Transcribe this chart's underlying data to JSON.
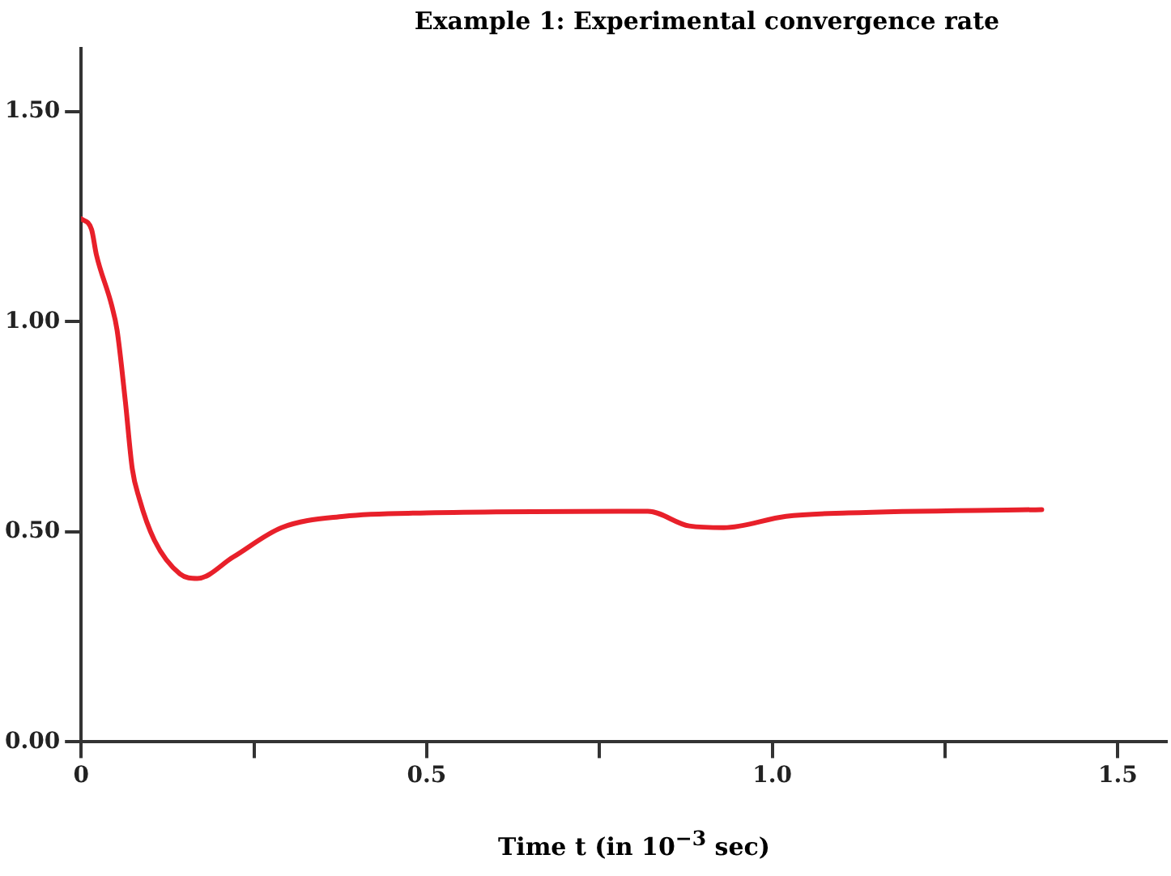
{
  "chart_data": {
    "type": "line",
    "title": "Example 1: Experimental convergence rate",
    "xlabel": "Time t (in 10$^{−3}$ sec)",
    "x": [
      0,
      0.015,
      0.022,
      0.044,
      0.052,
      0.064,
      0.074,
      0.084,
      0.106,
      0.143,
      0.168,
      0.22,
      0.29,
      0.38,
      0.5,
      0.82,
      0.88,
      0.93,
      1.02,
      1.11,
      1.39
    ],
    "series": [
      {
        "color": "#e8202a",
        "values": [
          1.245,
          1.22,
          1.16,
          1.04,
          0.98,
          0.81,
          0.65,
          0.58,
          0.48,
          0.4,
          0.389,
          0.44,
          0.51,
          0.537,
          0.545,
          0.549,
          0.514,
          0.51,
          0.537,
          0.545,
          0.553
        ]
      }
    ],
    "xlim": [
      0,
      1.57
    ],
    "ylim": [
      0,
      1.65
    ],
    "xticks": [
      {
        "value": 0,
        "label": "0"
      },
      {
        "value": 0.25,
        "label": null
      },
      0.5,
      {
        "value": 0.75,
        "label": null
      },
      {
        "value": 1,
        "label": "1.0"
      },
      {
        "value": 1.25,
        "label": null
      },
      1.5
    ],
    "yticks": [
      {
        "value": 0,
        "label": "0.00"
      },
      {
        "value": 0.5,
        "label": "0.50"
      },
      {
        "value": 1,
        "label": "1.00"
      },
      {
        "value": 1.5,
        "label": "1.50"
      }
    ],
    "grid": false,
    "legend": false,
    "marker": "none",
    "line_style": "solid"
  }
}
